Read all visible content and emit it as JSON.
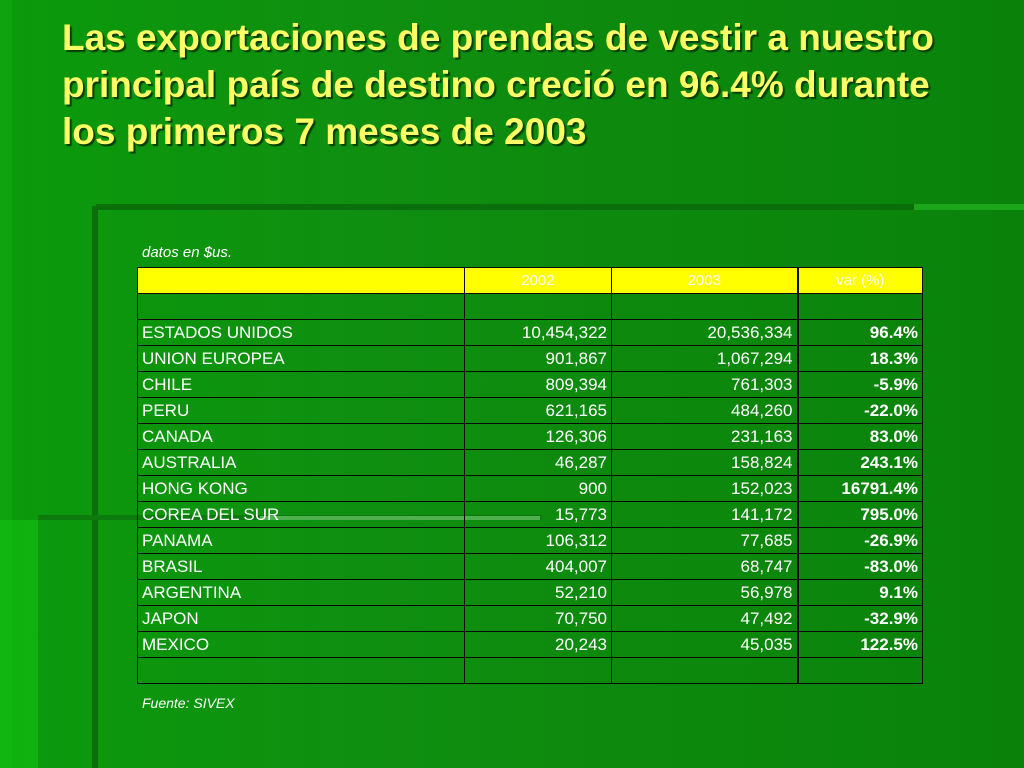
{
  "title": "Las exportaciones de prendas de vestir a nuestro principal país de destino  creció en 96.4% durante los primeros 7 meses de 2003",
  "units_note": "datos en $us.",
  "source_note": "Fuente: SIVEX",
  "colors": {
    "background": "#0f8f10",
    "title": "#ffff66",
    "header_fill": "#ffff00",
    "text": "#ffffff"
  },
  "table": {
    "headers": {
      "country": "",
      "y2002": "2002",
      "y2003": "2003",
      "var": "var (%)"
    },
    "rows": [
      {
        "country": "ESTADOS UNIDOS",
        "y2002": "10,454,322",
        "y2003": "20,536,334",
        "var": "96.4%"
      },
      {
        "country": "UNION EUROPEA",
        "y2002": "901,867",
        "y2003": "1,067,294",
        "var": "18.3%"
      },
      {
        "country": "CHILE",
        "y2002": "809,394",
        "y2003": "761,303",
        "var": "-5.9%"
      },
      {
        "country": "PERU",
        "y2002": "621,165",
        "y2003": "484,260",
        "var": "-22.0%"
      },
      {
        "country": "CANADA",
        "y2002": "126,306",
        "y2003": "231,163",
        "var": "83.0%"
      },
      {
        "country": "AUSTRALIA",
        "y2002": "46,287",
        "y2003": "158,824",
        "var": "243.1%"
      },
      {
        "country": "HONG KONG",
        "y2002": "900",
        "y2003": "152,023",
        "var": "16791.4%"
      },
      {
        "country": "COREA DEL SUR",
        "y2002": "15,773",
        "y2003": "141,172",
        "var": "795.0%"
      },
      {
        "country": "PANAMA",
        "y2002": "106,312",
        "y2003": "77,685",
        "var": "-26.9%"
      },
      {
        "country": "BRASIL",
        "y2002": "404,007",
        "y2003": "68,747",
        "var": "-83.0%"
      },
      {
        "country": "ARGENTINA",
        "y2002": "52,210",
        "y2003": "56,978",
        "var": "9.1%"
      },
      {
        "country": "JAPON",
        "y2002": "70,750",
        "y2003": "47,492",
        "var": "-32.9%"
      },
      {
        "country": "MEXICO",
        "y2002": "20,243",
        "y2003": "45,035",
        "var": "122.5%"
      }
    ]
  }
}
